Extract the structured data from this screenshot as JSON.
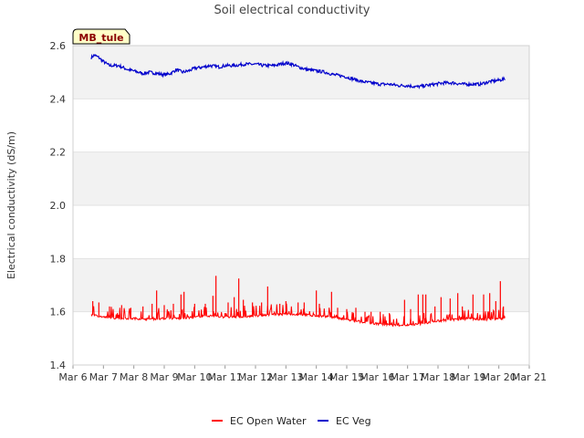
{
  "chart_data": {
    "type": "line",
    "title": "Soil electrical conductivity",
    "ylabel": "Electrical conductivity (dS/m)",
    "xlabel": "",
    "site_tag": "MB_tule",
    "ylim": [
      1.4,
      2.6
    ],
    "yticks": [
      "1.4",
      "1.6",
      "1.8",
      "2.0",
      "2.2",
      "2.4",
      "2.6"
    ],
    "xlim": [
      6,
      21
    ],
    "xticks": [
      "Mar 6",
      "Mar 7",
      "Mar 8",
      "Mar 9",
      "Mar 10",
      "Mar 11",
      "Mar 12",
      "Mar 13",
      "Mar 14",
      "Mar 15",
      "Mar 16",
      "Mar 17",
      "Mar 18",
      "Mar 19",
      "Mar 20",
      "Mar 21"
    ],
    "grid": true,
    "legend_position": "bottom-center",
    "series": [
      {
        "name": "EC Open Water",
        "color": "#ff0000",
        "baseline": {
          "x": [
            6.6,
            7.0,
            7.5,
            8.0,
            8.5,
            9.0,
            9.5,
            10.0,
            10.5,
            11.0,
            11.5,
            12.0,
            12.5,
            13.0,
            13.5,
            14.0,
            14.5,
            15.0,
            15.5,
            16.0,
            16.5,
            17.0,
            17.5,
            18.0,
            18.5,
            19.0,
            19.5,
            20.0,
            20.2
          ],
          "y": [
            1.59,
            1.58,
            1.575,
            1.575,
            1.572,
            1.575,
            1.575,
            1.58,
            1.585,
            1.58,
            1.58,
            1.585,
            1.59,
            1.59,
            1.59,
            1.585,
            1.58,
            1.57,
            1.56,
            1.555,
            1.55,
            1.55,
            1.555,
            1.565,
            1.57,
            1.575,
            1.57,
            1.575,
            1.575
          ]
        },
        "spikes": {
          "x": [
            6.65,
            6.85,
            7.2,
            7.6,
            7.9,
            8.3,
            8.6,
            8.75,
            9.0,
            9.3,
            9.55,
            9.65,
            10.0,
            10.35,
            10.6,
            10.7,
            11.1,
            11.3,
            11.45,
            11.6,
            11.9,
            12.2,
            12.4,
            12.8,
            13.0,
            13.4,
            13.6,
            14.0,
            14.1,
            14.5,
            14.7,
            15.0,
            15.3,
            15.6,
            15.8,
            16.1,
            16.4,
            16.9,
            17.1,
            17.35,
            17.5,
            17.6,
            17.9,
            18.1,
            18.4,
            18.65,
            18.8,
            19.15,
            19.5,
            19.7,
            19.9,
            20.05,
            20.15
          ],
          "y": [
            1.64,
            1.635,
            1.62,
            1.625,
            1.615,
            1.62,
            1.63,
            1.68,
            1.625,
            1.63,
            1.665,
            1.675,
            1.63,
            1.63,
            1.66,
            1.735,
            1.635,
            1.655,
            1.725,
            1.645,
            1.635,
            1.635,
            1.695,
            1.63,
            1.64,
            1.635,
            1.635,
            1.68,
            1.63,
            1.675,
            1.615,
            1.61,
            1.615,
            1.6,
            1.6,
            1.6,
            1.595,
            1.645,
            1.61,
            1.665,
            1.665,
            1.665,
            1.62,
            1.655,
            1.65,
            1.67,
            1.62,
            1.665,
            1.665,
            1.67,
            1.64,
            1.715,
            1.62
          ]
        }
      },
      {
        "name": "EC Veg",
        "color": "#0000cc",
        "x": [
          6.6,
          6.7,
          6.85,
          7.0,
          7.2,
          7.5,
          7.8,
          8.0,
          8.3,
          8.5,
          8.8,
          9.0,
          9.2,
          9.4,
          9.6,
          9.8,
          10.0,
          10.3,
          10.5,
          10.8,
          11.0,
          11.3,
          11.6,
          12.0,
          12.3,
          12.6,
          12.8,
          13.0,
          13.2,
          13.4,
          13.7,
          14.0,
          14.3,
          14.6,
          14.9,
          15.2,
          15.5,
          15.8,
          16.1,
          16.4,
          16.7,
          17.0,
          17.3,
          17.6,
          17.9,
          18.2,
          18.5,
          18.8,
          19.1,
          19.4,
          19.7,
          20.0,
          20.2
        ],
        "y": [
          2.555,
          2.565,
          2.555,
          2.54,
          2.525,
          2.525,
          2.51,
          2.505,
          2.495,
          2.5,
          2.495,
          2.49,
          2.495,
          2.51,
          2.5,
          2.505,
          2.515,
          2.52,
          2.525,
          2.52,
          2.525,
          2.525,
          2.53,
          2.53,
          2.525,
          2.525,
          2.53,
          2.535,
          2.53,
          2.52,
          2.51,
          2.505,
          2.5,
          2.49,
          2.485,
          2.475,
          2.465,
          2.46,
          2.455,
          2.455,
          2.45,
          2.45,
          2.445,
          2.45,
          2.455,
          2.46,
          2.46,
          2.455,
          2.455,
          2.455,
          2.465,
          2.47,
          2.475
        ]
      }
    ]
  }
}
